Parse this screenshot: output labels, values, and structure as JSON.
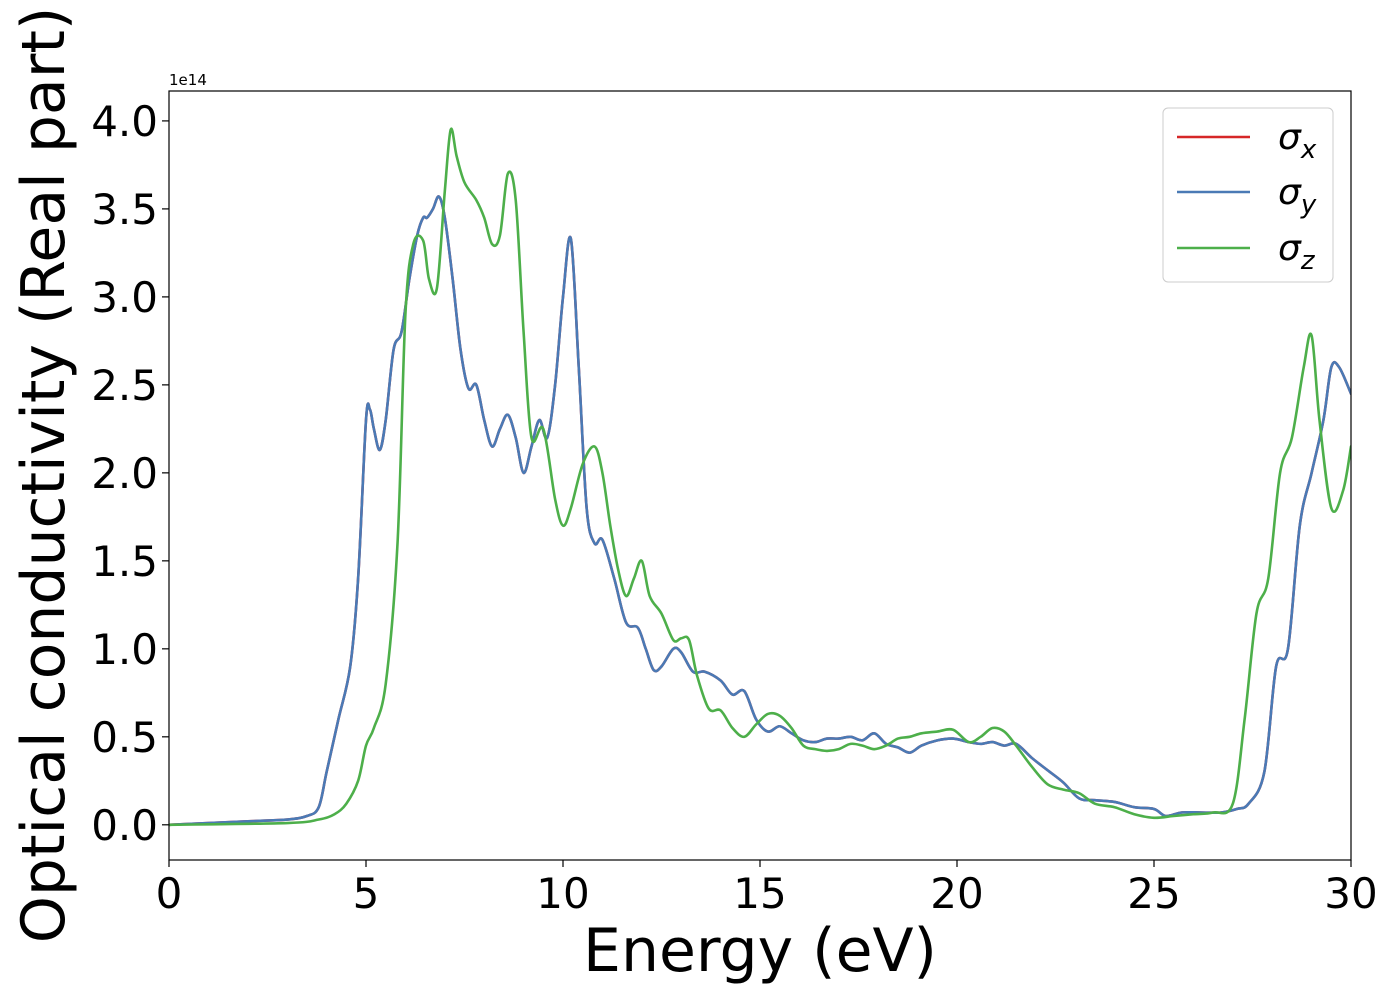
{
  "chart_data": {
    "type": "line",
    "xlabel": "Energy (eV)",
    "ylabel": "Optical conductivity (Real part)",
    "y_offset_label": "1e14",
    "xlim": [
      0,
      30
    ],
    "ylim": [
      -0.2,
      4.17
    ],
    "y_scale_multiplier": 100000000000000.0,
    "x_ticks": [
      0,
      5,
      10,
      15,
      20,
      25,
      30
    ],
    "x_tick_labels": [
      "0",
      "5",
      "10",
      "15",
      "20",
      "25",
      "30"
    ],
    "y_ticks": [
      0.0,
      0.5,
      1.0,
      1.5,
      2.0,
      2.5,
      3.0,
      3.5,
      4.0
    ],
    "y_tick_labels": [
      "0.0",
      "0.5",
      "1.0",
      "1.5",
      "2.0",
      "2.5",
      "3.0",
      "3.5",
      "4.0"
    ],
    "grid": false,
    "legend_position": "top-right",
    "series": [
      {
        "name": "σx",
        "name_base": "σ",
        "name_sub": "x",
        "color": "#d62728",
        "x": [
          0,
          2,
          3,
          3.5,
          3.8,
          4.0,
          4.3,
          4.6,
          4.8,
          5.0,
          5.1,
          5.2,
          5.35,
          5.5,
          5.7,
          5.9,
          6.1,
          6.3,
          6.45,
          6.55,
          6.7,
          6.85,
          7.0,
          7.2,
          7.4,
          7.6,
          7.8,
          8.0,
          8.2,
          8.4,
          8.6,
          8.8,
          9.0,
          9.2,
          9.4,
          9.6,
          9.8,
          10.0,
          10.2,
          10.4,
          10.6,
          10.8,
          11.0,
          11.3,
          11.6,
          11.9,
          12.1,
          12.3,
          12.5,
          12.8,
          13.0,
          13.3,
          13.6,
          14.0,
          14.3,
          14.6,
          14.9,
          15.2,
          15.5,
          15.8,
          16.1,
          16.4,
          16.7,
          17.0,
          17.3,
          17.6,
          17.9,
          18.2,
          18.5,
          18.8,
          19.1,
          19.5,
          19.9,
          20.3,
          20.6,
          20.9,
          21.2,
          21.5,
          21.9,
          22.3,
          22.7,
          23.1,
          23.5,
          24.0,
          24.5,
          25.0,
          25.3,
          25.7,
          26.2,
          26.7,
          27.1,
          27.4,
          27.8,
          28.1,
          28.4,
          28.7,
          29.0,
          29.3,
          29.5,
          29.7,
          30.0
        ],
        "y": [
          0,
          0.02,
          0.03,
          0.05,
          0.1,
          0.3,
          0.6,
          0.9,
          1.4,
          2.3,
          2.36,
          2.25,
          2.13,
          2.3,
          2.7,
          2.8,
          3.1,
          3.35,
          3.45,
          3.45,
          3.5,
          3.57,
          3.45,
          3.1,
          2.7,
          2.48,
          2.5,
          2.3,
          2.15,
          2.25,
          2.33,
          2.2,
          2.0,
          2.15,
          2.3,
          2.2,
          2.5,
          3.0,
          3.33,
          2.6,
          1.8,
          1.6,
          1.62,
          1.4,
          1.15,
          1.12,
          1.0,
          0.88,
          0.9,
          1.0,
          0.98,
          0.87,
          0.87,
          0.82,
          0.74,
          0.76,
          0.6,
          0.53,
          0.56,
          0.52,
          0.48,
          0.47,
          0.49,
          0.49,
          0.5,
          0.48,
          0.52,
          0.46,
          0.44,
          0.41,
          0.45,
          0.48,
          0.49,
          0.47,
          0.46,
          0.47,
          0.45,
          0.46,
          0.38,
          0.31,
          0.24,
          0.15,
          0.14,
          0.13,
          0.1,
          0.09,
          0.05,
          0.07,
          0.07,
          0.07,
          0.09,
          0.12,
          0.3,
          0.9,
          1.0,
          1.7,
          2.0,
          2.3,
          2.6,
          2.6,
          2.45
        ]
      },
      {
        "name": "σy",
        "name_base": "σ",
        "name_sub": "y",
        "color": "#4a7ab5",
        "x": [
          0,
          2,
          3,
          3.5,
          3.8,
          4.0,
          4.3,
          4.6,
          4.8,
          5.0,
          5.1,
          5.2,
          5.35,
          5.5,
          5.7,
          5.9,
          6.1,
          6.3,
          6.45,
          6.55,
          6.7,
          6.85,
          7.0,
          7.2,
          7.4,
          7.6,
          7.8,
          8.0,
          8.2,
          8.4,
          8.6,
          8.8,
          9.0,
          9.2,
          9.4,
          9.6,
          9.8,
          10.0,
          10.2,
          10.4,
          10.6,
          10.8,
          11.0,
          11.3,
          11.6,
          11.9,
          12.1,
          12.3,
          12.5,
          12.8,
          13.0,
          13.3,
          13.6,
          14.0,
          14.3,
          14.6,
          14.9,
          15.2,
          15.5,
          15.8,
          16.1,
          16.4,
          16.7,
          17.0,
          17.3,
          17.6,
          17.9,
          18.2,
          18.5,
          18.8,
          19.1,
          19.5,
          19.9,
          20.3,
          20.6,
          20.9,
          21.2,
          21.5,
          21.9,
          22.3,
          22.7,
          23.1,
          23.5,
          24.0,
          24.5,
          25.0,
          25.3,
          25.7,
          26.2,
          26.7,
          27.1,
          27.4,
          27.8,
          28.1,
          28.4,
          28.7,
          29.0,
          29.3,
          29.5,
          29.7,
          30.0
        ],
        "y": [
          0,
          0.02,
          0.03,
          0.05,
          0.1,
          0.3,
          0.6,
          0.9,
          1.4,
          2.3,
          2.36,
          2.25,
          2.13,
          2.3,
          2.7,
          2.8,
          3.1,
          3.35,
          3.45,
          3.45,
          3.5,
          3.57,
          3.45,
          3.1,
          2.7,
          2.48,
          2.5,
          2.3,
          2.15,
          2.25,
          2.33,
          2.2,
          2.0,
          2.15,
          2.3,
          2.2,
          2.5,
          3.0,
          3.33,
          2.6,
          1.8,
          1.6,
          1.62,
          1.4,
          1.15,
          1.12,
          1.0,
          0.88,
          0.9,
          1.0,
          0.98,
          0.87,
          0.87,
          0.82,
          0.74,
          0.76,
          0.6,
          0.53,
          0.56,
          0.52,
          0.48,
          0.47,
          0.49,
          0.49,
          0.5,
          0.48,
          0.52,
          0.46,
          0.44,
          0.41,
          0.45,
          0.48,
          0.49,
          0.47,
          0.46,
          0.47,
          0.45,
          0.46,
          0.38,
          0.31,
          0.24,
          0.15,
          0.14,
          0.13,
          0.1,
          0.09,
          0.05,
          0.07,
          0.07,
          0.07,
          0.09,
          0.12,
          0.3,
          0.9,
          1.0,
          1.7,
          2.0,
          2.3,
          2.6,
          2.6,
          2.45
        ]
      },
      {
        "name": "σz",
        "name_base": "σ",
        "name_sub": "z",
        "color": "#4daf4a",
        "x": [
          0,
          3,
          3.8,
          4.2,
          4.5,
          4.8,
          5.0,
          5.2,
          5.5,
          5.8,
          6.0,
          6.2,
          6.45,
          6.6,
          6.8,
          7.0,
          7.15,
          7.3,
          7.5,
          7.8,
          8.0,
          8.2,
          8.4,
          8.6,
          8.8,
          9.0,
          9.2,
          9.5,
          9.8,
          10.0,
          10.2,
          10.5,
          10.8,
          11.0,
          11.2,
          11.4,
          11.6,
          11.8,
          12.0,
          12.2,
          12.5,
          12.8,
          13.0,
          13.2,
          13.4,
          13.7,
          14.0,
          14.3,
          14.6,
          14.9,
          15.2,
          15.5,
          15.8,
          16.1,
          16.4,
          16.7,
          17.0,
          17.3,
          17.6,
          17.9,
          18.2,
          18.5,
          18.8,
          19.1,
          19.5,
          19.9,
          20.3,
          20.6,
          20.9,
          21.2,
          21.5,
          21.9,
          22.3,
          22.7,
          23.1,
          23.5,
          24.0,
          24.5,
          25.0,
          25.5,
          26.0,
          26.5,
          27.0,
          27.3,
          27.6,
          27.9,
          28.2,
          28.5,
          28.8,
          29.0,
          29.2,
          29.5,
          29.8,
          30.0
        ],
        "y": [
          0,
          0.01,
          0.03,
          0.06,
          0.12,
          0.25,
          0.45,
          0.55,
          0.8,
          1.6,
          2.9,
          3.3,
          3.32,
          3.1,
          3.05,
          3.6,
          3.95,
          3.8,
          3.65,
          3.55,
          3.45,
          3.3,
          3.35,
          3.7,
          3.55,
          2.8,
          2.2,
          2.25,
          1.85,
          1.7,
          1.8,
          2.05,
          2.15,
          2.0,
          1.7,
          1.45,
          1.3,
          1.4,
          1.5,
          1.3,
          1.2,
          1.05,
          1.06,
          1.05,
          0.85,
          0.66,
          0.65,
          0.55,
          0.5,
          0.57,
          0.63,
          0.62,
          0.55,
          0.45,
          0.43,
          0.42,
          0.43,
          0.46,
          0.45,
          0.43,
          0.45,
          0.49,
          0.5,
          0.52,
          0.53,
          0.54,
          0.47,
          0.5,
          0.55,
          0.53,
          0.45,
          0.33,
          0.23,
          0.2,
          0.18,
          0.12,
          0.1,
          0.06,
          0.04,
          0.05,
          0.06,
          0.07,
          0.12,
          0.6,
          1.2,
          1.4,
          2.0,
          2.2,
          2.6,
          2.78,
          2.3,
          1.8,
          1.9,
          2.15
        ]
      }
    ]
  }
}
